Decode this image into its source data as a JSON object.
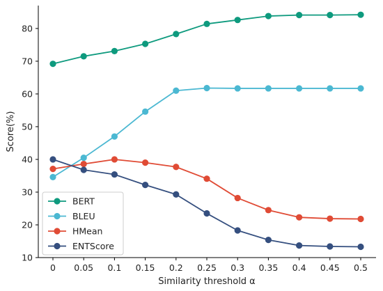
{
  "chart_data": {
    "type": "line",
    "xlabel": "Similarity threshold α",
    "ylabel": "Score(%)",
    "x": [
      "0",
      "0.05",
      "0.1",
      "0.15",
      "0.2",
      "0.25",
      "0.3",
      "0.35",
      "0.4",
      "0.45",
      "0.5"
    ],
    "ylim": [
      10,
      87
    ],
    "yticks": [
      "10",
      "20",
      "30",
      "40",
      "50",
      "60",
      "70",
      "80"
    ],
    "grid": false,
    "legend_position": "bottom-left",
    "series": [
      {
        "name": "BERT",
        "color": "#0e9a7e",
        "values": [
          69.2,
          71.5,
          73.1,
          75.3,
          78.3,
          81.4,
          82.6,
          83.8,
          84.1,
          84.1,
          84.2
        ]
      },
      {
        "name": "BLEU",
        "color": "#4bb8d2",
        "values": [
          34.6,
          40.5,
          47.0,
          54.6,
          61.0,
          61.8,
          61.7,
          61.7,
          61.7,
          61.7,
          61.7
        ]
      },
      {
        "name": "HMean",
        "color": "#e04b35",
        "values": [
          37.1,
          38.6,
          40.0,
          39.0,
          37.7,
          34.1,
          28.2,
          24.5,
          22.3,
          21.9,
          21.8
        ]
      },
      {
        "name": "ENTScore",
        "color": "#354f7f",
        "values": [
          40.0,
          36.8,
          35.4,
          32.2,
          29.3,
          23.5,
          18.3,
          15.4,
          13.7,
          13.4,
          13.3
        ]
      }
    ]
  }
}
